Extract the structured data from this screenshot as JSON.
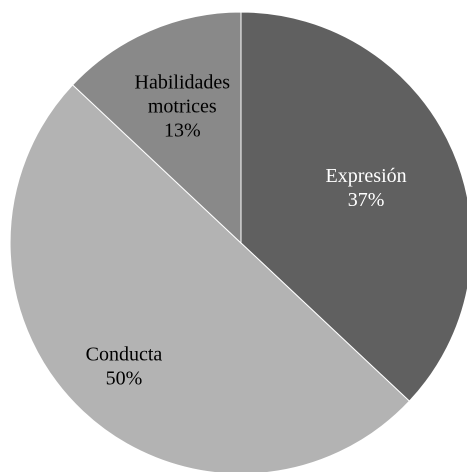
{
  "chart_data": {
    "type": "pie",
    "title": "",
    "slices": [
      {
        "name": "Expresión",
        "value": 37,
        "label": "37%",
        "color": "#606060",
        "text_color": "#ffffff"
      },
      {
        "name": "Conducta",
        "value": 50,
        "label": "50%",
        "color": "#b3b3b3",
        "text_color": "#000000"
      },
      {
        "name": "Habilidades motrices",
        "value": 13,
        "label": "13%",
        "color": "#898989",
        "text_color": "#000000"
      }
    ],
    "start_angle_deg": 0,
    "direction": "clockwise",
    "legend": "none",
    "data_labels": "inside, category name and percentage"
  }
}
